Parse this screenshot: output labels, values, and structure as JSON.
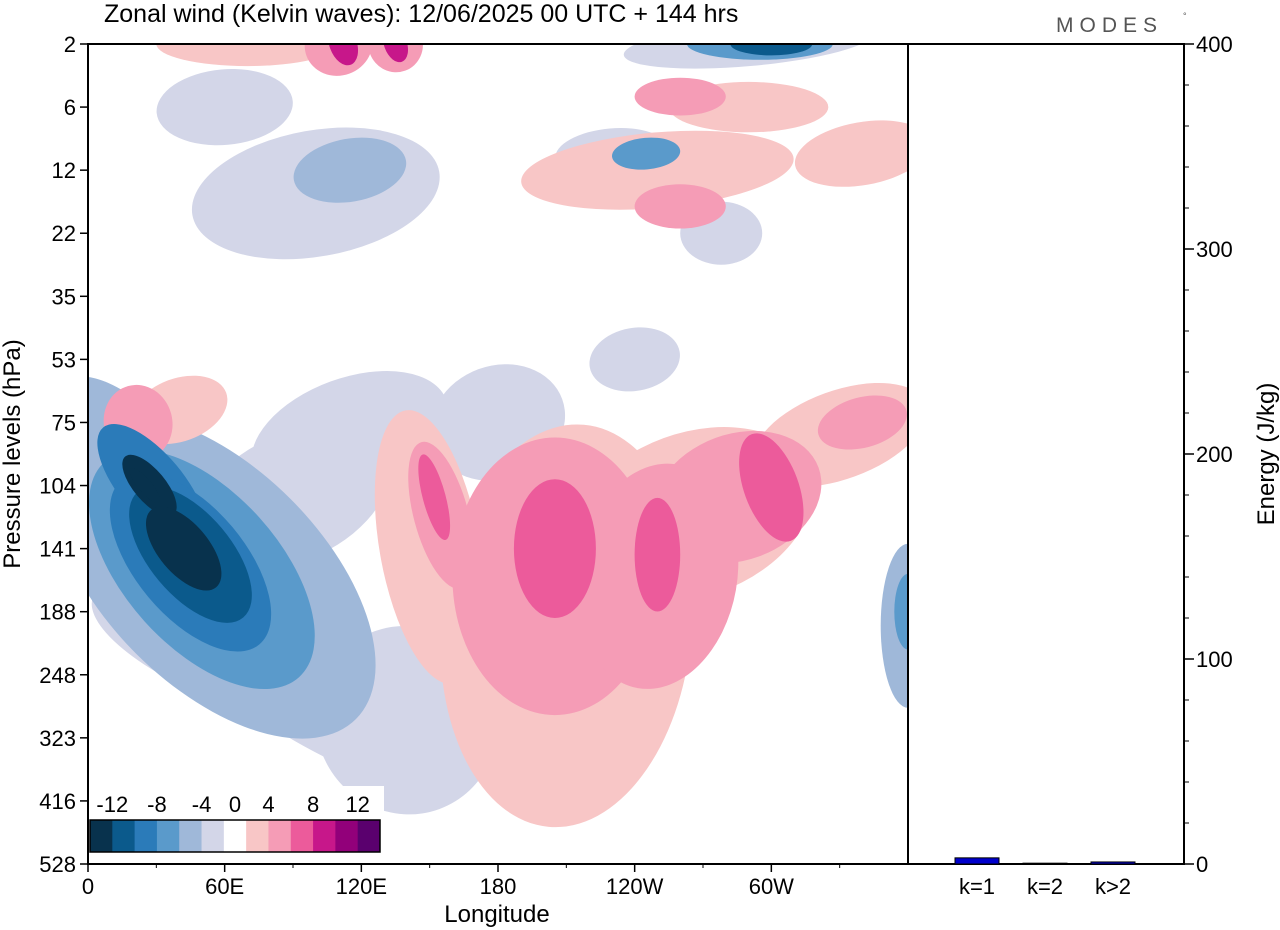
{
  "title": "Zonal wind (Kelvin waves):  12/06/2025  00 UTC  + 144 hrs",
  "logo": {
    "text": "MODES",
    "mark": "°"
  },
  "colors": {
    "frame": "#000000",
    "energy_bar": "#0000cc",
    "scale": [
      "#08324d",
      "#0b5a8c",
      "#2b7bb9",
      "#5a9acb",
      "#9fb8d9",
      "#d3d6e8",
      "#ffffff",
      "#f8c6c6",
      "#f59cb6",
      "#ec5b9b",
      "#c7178a",
      "#92007a",
      "#5a006e"
    ]
  },
  "chart_data": [
    {
      "type": "heatmap",
      "title": "Zonal wind (Kelvin waves):  12/06/2025  00 UTC  + 144 hrs",
      "xlabel": "Longitude",
      "ylabel": "Pressure levels (hPa)",
      "x_ticks": [
        "0",
        "60E",
        "120E",
        "180",
        "120W",
        "60W"
      ],
      "x_tick_lon": [
        0,
        60,
        120,
        180,
        240,
        300
      ],
      "xlim": [
        0,
        360
      ],
      "y_ticks": [
        "2",
        "6",
        "12",
        "22",
        "35",
        "53",
        "75",
        "104",
        "141",
        "188",
        "248",
        "323",
        "416",
        "528"
      ],
      "y_scale": "model levels (log-pressure, top = 2 hPa, bottom = 528 hPa)",
      "colorbar": {
        "labels": [
          "-12",
          "-8",
          "-4",
          "0",
          "4",
          "8",
          "12"
        ],
        "levels": [
          -14,
          -12,
          -10,
          -8,
          -6,
          -4,
          -2,
          2,
          4,
          6,
          8,
          10,
          12,
          14
        ]
      },
      "features": [
        {
          "sign": "easterly",
          "lon": 50,
          "p": 141,
          "peak": -14
        },
        {
          "sign": "easterly",
          "lon": 25,
          "p": 104,
          "peak": -14
        },
        {
          "sign": "westerly",
          "lon": 205,
          "p": 141,
          "peak": 9
        },
        {
          "sign": "westerly",
          "lon": 250,
          "p": 141,
          "peak": 9
        },
        {
          "sign": "westerly",
          "lon": 150,
          "p": 104,
          "peak": 8
        },
        {
          "sign": "westerly",
          "lon": 300,
          "p": 104,
          "peak": 9
        },
        {
          "sign": "easterly",
          "lon": 285,
          "p": 2,
          "peak": -12
        },
        {
          "sign": "westerly",
          "lon": 130,
          "p": 2,
          "peak": 11
        },
        {
          "sign": "westerly",
          "lon": 110,
          "p": 2,
          "peak": 10
        }
      ]
    },
    {
      "type": "bar",
      "ylabel": "Energy (J/kg)",
      "categories": [
        "k=1",
        "k=2",
        "k>2"
      ],
      "values": [
        3,
        0.4,
        1
      ],
      "ylim": [
        0,
        400
      ],
      "y_ticks": [
        "0",
        "100",
        "200",
        "300",
        "400"
      ]
    }
  ]
}
